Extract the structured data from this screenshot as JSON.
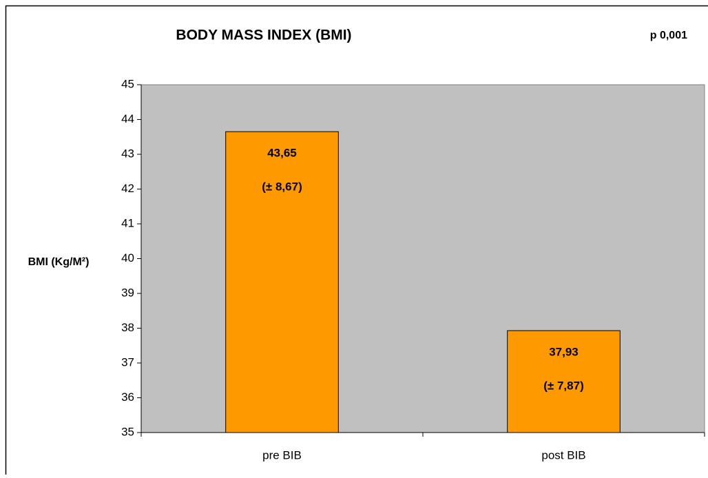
{
  "chart_data": {
    "type": "bar",
    "title": "BODY MASS INDEX (BMI)",
    "annotation": "p 0,001",
    "y_label": "BMI (Kg/M²)",
    "categories": [
      "pre BIB",
      "post BIB"
    ],
    "values": [
      43.65,
      37.93
    ],
    "value_labels": [
      "43,65",
      "37,93"
    ],
    "error_labels": [
      "(± 8,67)",
      "(± 7,87)"
    ],
    "color": "#ff9900",
    "background": "#c0c0c0",
    "ylim": [
      35,
      45
    ],
    "yticks": [
      35,
      36,
      37,
      38,
      39,
      40,
      41,
      42,
      43,
      44,
      45
    ]
  }
}
